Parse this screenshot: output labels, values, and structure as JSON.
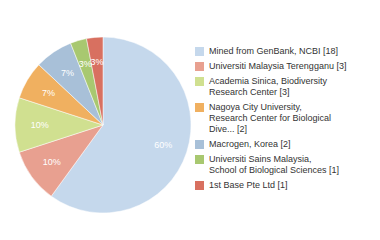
{
  "chart_data": {
    "type": "pie",
    "categories": [
      "Mined from GenBank, NCBI [18]",
      "Universiti Malaysia Terengganu [3]",
      "Academia Sinica, Biodiversity\nResearch Center [3]",
      "Nagoya City University,\nResearch Center for Biological\nDive... [2]",
      "Macrogen, Korea [2]",
      "Universiti Sains Malaysia,\nSchool of Biological Sciences [1]",
      "1st Base Pte Ltd [1]"
    ],
    "values": [
      60,
      10,
      10,
      7,
      7,
      3,
      3
    ],
    "value_labels": [
      "60%",
      "10%",
      "10%",
      "7%",
      "7%",
      "3%",
      "3%"
    ],
    "colors": [
      "#c5d8ec",
      "#e8a090",
      "#d0e090",
      "#f0b060",
      "#a8c0d8",
      "#a8c870",
      "#d87060"
    ],
    "data_labels": true,
    "legend": "right"
  }
}
